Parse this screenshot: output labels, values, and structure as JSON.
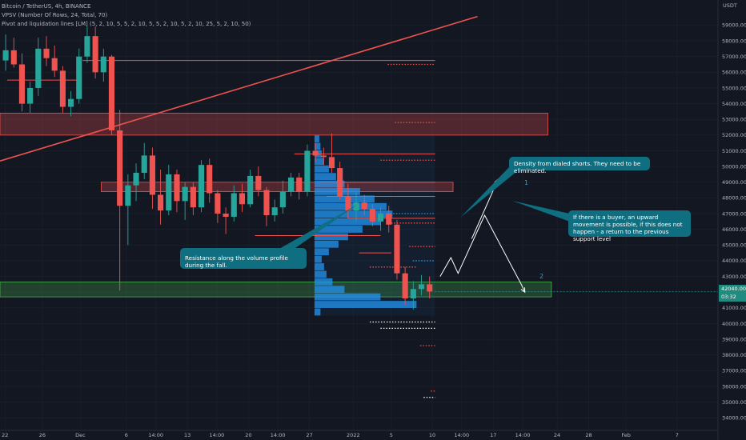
{
  "header": {
    "symbol_line": "Bitcoin / TetherUS, 4h, BINANCE",
    "indicator_vpsv": "VPSV (Number Of Rows, 24, Total, 70)",
    "indicator_pivot": "Pivot and liquidation lines [LM] (5, 2, 10, 5, 5, 2, 10, 5, 5, 2, 10, 5, 2, 10, 25, 5, 2, 10, 50)"
  },
  "price_axis": {
    "currency": "USDT",
    "last_price": "42040.00",
    "countdown": "03:32"
  },
  "callouts": {
    "density": "Density from dialed shorts. They need to be eliminated.",
    "resistance": "Resistance along the volume profile during the fall.",
    "buyer": "If there is a buyer, an upward movement is possible, if this does not happen - a return to the previous support level"
  },
  "scenario_labels": {
    "one": "1",
    "two": "2"
  },
  "colors": {
    "background": "#131722",
    "up": "#26a69a",
    "down": "#ef5350",
    "grid": "#1e222d",
    "resistance_zone": "#ef5350",
    "support_zone": "#4caf50",
    "volume": "#2196f3",
    "callout": "#0f6f80",
    "scenario_label": "#22a6c0"
  },
  "chart_data": {
    "type": "candlestick",
    "symbol": "BTC/USDT",
    "timeframe": "4h",
    "exchange": "BINANCE",
    "y_axis": {
      "ylim": [
        33200,
        60600
      ],
      "ticks": [
        59000,
        58000,
        57000,
        56000,
        55000,
        54000,
        53000,
        52000,
        51000,
        50000,
        49000,
        48000,
        47000,
        46000,
        45000,
        44000,
        43000,
        42000,
        41000,
        40000,
        39000,
        38000,
        37000,
        36000,
        35000,
        34000
      ]
    },
    "x_axis": {
      "ticks": [
        {
          "label": "22",
          "x": 0.7
        },
        {
          "label": "26",
          "x": 5.9
        },
        {
          "label": "Dec",
          "x": 11.2
        },
        {
          "label": "6",
          "x": 17.6
        },
        {
          "label": "14:00",
          "x": 21.7
        },
        {
          "label": "13",
          "x": 26.1
        },
        {
          "label": "14:00",
          "x": 30.2
        },
        {
          "label": "20",
          "x": 34.6
        },
        {
          "label": "14:00",
          "x": 38.7
        },
        {
          "label": "27",
          "x": 43.1
        },
        {
          "label": "2022",
          "x": 49.2
        },
        {
          "label": "5",
          "x": 54.5
        },
        {
          "label": "10",
          "x": 60.2
        },
        {
          "label": "14:00",
          "x": 64.3
        },
        {
          "label": "17",
          "x": 68.7
        },
        {
          "label": "14:00",
          "x": 72.8
        },
        {
          "label": "24",
          "x": 77.6
        },
        {
          "label": "28",
          "x": 82.0
        },
        {
          "label": "Feb",
          "x": 87.2
        },
        {
          "label": "7",
          "x": 94.3
        }
      ]
    },
    "candles": [
      [
        0,
        56750,
        58400,
        56100,
        57400
      ],
      [
        1,
        57400,
        58200,
        56300,
        56500
      ],
      [
        2,
        56500,
        57200,
        53500,
        54000
      ],
      [
        3,
        54000,
        55400,
        53400,
        55000
      ],
      [
        4,
        55000,
        58200,
        54500,
        57500
      ],
      [
        5,
        57500,
        58300,
        56400,
        56900
      ],
      [
        6,
        56900,
        57700,
        55700,
        56100
      ],
      [
        7,
        56100,
        56400,
        53400,
        53800
      ],
      [
        8,
        53800,
        54800,
        53200,
        54300
      ],
      [
        9,
        54300,
        57500,
        54000,
        57000
      ],
      [
        10,
        57000,
        58900,
        56600,
        58300
      ],
      [
        11,
        58300,
        58900,
        55600,
        56000
      ],
      [
        12,
        56000,
        57500,
        55400,
        57000
      ],
      [
        13,
        57000,
        57100,
        52000,
        52300
      ],
      [
        14,
        52300,
        53600,
        42100,
        47500
      ],
      [
        15,
        47500,
        49500,
        45000,
        48800
      ],
      [
        16,
        48800,
        50200,
        47800,
        49600
      ],
      [
        17,
        49600,
        51500,
        49200,
        50700
      ],
      [
        18,
        50700,
        51200,
        47300,
        48200
      ],
      [
        19,
        48200,
        49800,
        46300,
        47200
      ],
      [
        20,
        47200,
        50100,
        46900,
        49500
      ],
      [
        21,
        49500,
        49800,
        47100,
        47800
      ],
      [
        22,
        47800,
        49000,
        46600,
        48700
      ],
      [
        23,
        48700,
        49000,
        46900,
        47400
      ],
      [
        24,
        47400,
        50400,
        47100,
        50100
      ],
      [
        25,
        50100,
        50500,
        47700,
        48300
      ],
      [
        26,
        48300,
        48500,
        46400,
        47000
      ],
      [
        27,
        47000,
        47400,
        45700,
        46800
      ],
      [
        28,
        46800,
        48800,
        46500,
        48300
      ],
      [
        29,
        48300,
        48900,
        47100,
        47600
      ],
      [
        30,
        47600,
        49800,
        47400,
        49400
      ],
      [
        31,
        49400,
        50000,
        48100,
        48500
      ],
      [
        32,
        48500,
        48700,
        46200,
        46900
      ],
      [
        33,
        46900,
        47900,
        46500,
        47400
      ],
      [
        34,
        47400,
        49100,
        47000,
        48400
      ],
      [
        35,
        48400,
        49600,
        48100,
        49300
      ],
      [
        36,
        49300,
        49600,
        47900,
        48400
      ],
      [
        37,
        48400,
        51400,
        48100,
        51000
      ],
      [
        38,
        51000,
        51500,
        50300,
        50700
      ],
      [
        39,
        50700,
        51200,
        50100,
        50600
      ],
      [
        40,
        50600,
        52100,
        49600,
        49900
      ],
      [
        41,
        49900,
        50300,
        47900,
        48100
      ],
      [
        42,
        48100,
        48900,
        46700,
        47200
      ],
      [
        43,
        47200,
        48400,
        46500,
        47700
      ],
      [
        44,
        47700,
        48200,
        46900,
        47300
      ],
      [
        45,
        47300,
        47600,
        46200,
        46500
      ],
      [
        46,
        46500,
        47400,
        45900,
        47000
      ],
      [
        47,
        47000,
        47500,
        45800,
        46300
      ],
      [
        48,
        46300,
        46600,
        42800,
        43200
      ],
      [
        49,
        43200,
        43600,
        41200,
        41600
      ],
      [
        50,
        41600,
        42700,
        40900,
        42200
      ],
      [
        51,
        42200,
        43100,
        41800,
        42500
      ],
      [
        52,
        42500,
        43000,
        41600,
        42040
      ]
    ],
    "horizontal_levels": [
      {
        "price": 56750,
        "x": [
          11.5,
          60.6
        ],
        "style": "solid",
        "color": "#ef5350"
      },
      {
        "price": 55500,
        "x": [
          1.0,
          11.0
        ],
        "style": "solid",
        "color": "#ef5350"
      },
      {
        "price": 50800,
        "x": [
          41.0,
          60.6
        ],
        "style": "solid",
        "color": "#ef5350"
      },
      {
        "price": 49000,
        "x": [
          44.5,
          60.6
        ],
        "style": "solid",
        "color": "#ef5350"
      },
      {
        "price": 48100,
        "x": [
          45.5,
          60.6
        ],
        "style": "solid",
        "color": "#ef5350"
      },
      {
        "price": 46700,
        "x": [
          48.5,
          60.6
        ],
        "style": "solid",
        "color": "#ef5350"
      },
      {
        "price": 45600,
        "x": [
          35.5,
          53.0
        ],
        "style": "solid",
        "color": "#ef5350"
      },
      {
        "price": 44500,
        "x": [
          50.0,
          54.5
        ],
        "style": "solid",
        "color": "#ef5350"
      },
      {
        "price": 56500,
        "x": [
          54.0,
          60.6
        ],
        "style": "dotted",
        "color": "#ef5350"
      },
      {
        "price": 52800,
        "x": [
          55.0,
          60.6
        ],
        "style": "dotted",
        "color": "#ef5350"
      },
      {
        "price": 50400,
        "x": [
          53.0,
          60.6
        ],
        "style": "dotted",
        "color": "#ef5350"
      },
      {
        "price": 47000,
        "x": [
          54.0,
          60.6
        ],
        "style": "dotted",
        "color": "#2196f3"
      },
      {
        "price": 46400,
        "x": [
          54.5,
          60.6
        ],
        "style": "dotted",
        "color": "#ef5350"
      },
      {
        "price": 44900,
        "x": [
          57.0,
          60.6
        ],
        "style": "dotted",
        "color": "#ef5350"
      },
      {
        "price": 44000,
        "x": [
          57.5,
          60.6
        ],
        "style": "dotted",
        "color": "#2196f3"
      },
      {
        "price": 43600,
        "x": [
          51.5,
          58.0
        ],
        "style": "dotted",
        "color": "#ef5350"
      },
      {
        "price": 40100,
        "x": [
          51.5,
          60.6
        ],
        "style": "dotted",
        "color": "#ffffff"
      },
      {
        "price": 39700,
        "x": [
          53.0,
          60.6
        ],
        "style": "dotted",
        "color": "#ffffff"
      },
      {
        "price": 38600,
        "x": [
          58.5,
          60.6
        ],
        "style": "dotted",
        "color": "#ef5350"
      },
      {
        "price": 35700,
        "x": [
          60.0,
          60.6
        ],
        "style": "dotted",
        "color": "#ef5350"
      },
      {
        "price": 35300,
        "x": [
          59.0,
          60.6
        ],
        "style": "dotted",
        "color": "#ffffff"
      }
    ],
    "zones": [
      {
        "name": "resistance-zone-upper",
        "from": 52000,
        "to": 53400,
        "x": [
          0,
          76.3
        ],
        "color": "#ef5350"
      },
      {
        "name": "resistance-zone-middle",
        "from": 48400,
        "to": 49000,
        "x": [
          14.1,
          63.1
        ],
        "color": "#ef5350"
      },
      {
        "name": "support-zone",
        "from": 41700,
        "to": 42650,
        "x": [
          0,
          76.8
        ],
        "color": "#4caf50"
      }
    ],
    "trendline": {
      "from": {
        "x": 0.0,
        "price": 50350
      },
      "to": {
        "x": 66.5,
        "price": 59550
      },
      "color": "#ef5350"
    },
    "volume_profile": {
      "price_range": [
        40500,
        52000
      ],
      "anchor_x": 43.8,
      "relative_volumes": [
        0.05,
        0.85,
        0.55,
        0.25,
        0.15,
        0.1,
        0.08,
        0.06,
        0.12,
        0.2,
        0.28,
        0.4,
        0.55,
        0.65,
        0.6,
        0.5,
        0.38,
        0.25,
        0.18,
        0.12,
        0.08,
        0.06,
        0.05,
        0.04
      ]
    },
    "projection_path": [
      {
        "x": 61.3,
        "price": 43000
      },
      {
        "x": 62.8,
        "price": 44200
      },
      {
        "x": 63.8,
        "price": 43200
      },
      {
        "x": 67.5,
        "price": 46900
      },
      {
        "x": 72.6,
        "price": 42500
      }
    ],
    "projection_arrow_1": {
      "from": {
        "x": 65.7,
        "price": 45400
      },
      "to": {
        "x": 69.4,
        "price": 49200
      }
    },
    "projection_arrow_2": {
      "to": {
        "x": 73.1,
        "price": 42000
      }
    },
    "current_price": 42040,
    "annotations": [
      "Density from dialed shorts. They need to be eliminated.",
      "Resistance along the volume profile during the fall.",
      "If there is a buyer, an upward movement is possible, if this does not happen - a return to the previous support level"
    ]
  }
}
